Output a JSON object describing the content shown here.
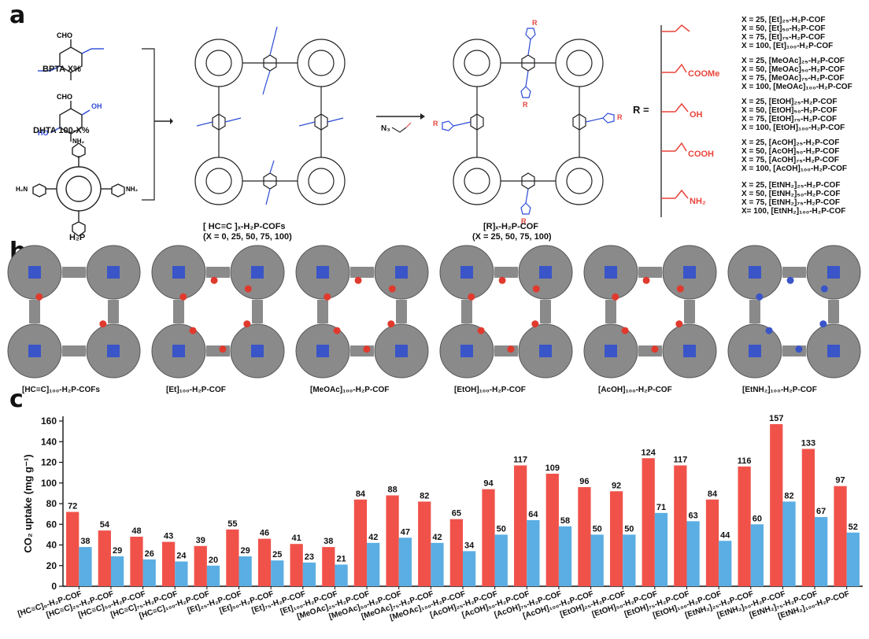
{
  "panels": {
    "a": "a",
    "b": "b",
    "c": "c"
  },
  "panel_a": {
    "bpta_label": "BPTA X%",
    "dhta_label": "DHTA 100-X%",
    "h2p_label": "H₂P",
    "cho": "CHO",
    "ho": "HO",
    "oh": "OH",
    "nh2": "NH₂",
    "h2n": "H₂N",
    "cof1_title": "[ HC≡C ]ₓ-H₂P-COFs",
    "cof1_sub": "(X = 0, 25, 50, 75, 100)",
    "cof2_title": "[R]ₓ-H₂P-COF",
    "cof2_sub": "(X = 25, 50, 75, 100)",
    "azide_reagent": "N₃",
    "r_label": "R =",
    "r_group_labels": [
      "",
      "COOMe",
      "OH",
      "COOH",
      "NH₂"
    ],
    "series_lists": [
      [
        "X = 25,   [Et]₂₅-H₂P-COF",
        "X = 50,   [Et]₅₀-H₂P-COF",
        "X = 75,   [Et]₇₅-H₂P-COF",
        "X = 100,  [Et]₁₀₀-H₂P-COF"
      ],
      [
        "X = 25,   [MeOAc]₂₅-H₂P-COF",
        "X = 50,   [MeOAc]₅₀-H₂P-COF",
        "X = 75,   [MeOAc]₇₅-H₂P-COF",
        "X = 100,  [MeOAc]₁₀₀-H₂P-COF"
      ],
      [
        "X = 25,   [EtOH]₂₅-H₂P-COF",
        "X = 50,   [EtOH]₅₀-H₂P-COF",
        "X = 75,   [EtOH]₇₅-H₂P-COF",
        "X = 100,  [EtOH]₁₀₀-H₂P-COF"
      ],
      [
        "X = 25,   [AcOH]₂₅-H₂P-COF",
        "X = 50,   [AcOH]₅₀-H₂P-COF",
        "X = 75,   [AcOH]₇₅-H₂P-COF",
        "X = 100,  [AcOH]₁₀₀-H₂P-COF"
      ],
      [
        "X = 25,   [EtNH₂]₂₅-H₂P-COF",
        "X = 50,   [EtNH₂]₅₀-H₂P-COF",
        "X = 75,   [EtNH₂]₇₅-H₂P-COF",
        "X= 100,  [EtNH₂]₁₀₀-H₂P-COF"
      ]
    ]
  },
  "panel_b": {
    "structure_labels": [
      "[HC≡C]₁₀₀-H₂P-COFs",
      "[Et]₁₀₀-H₂P-COF",
      "[MeOAc]₁₀₀-H₂P-COF",
      "[EtOH]₁₀₀-H₂P-COF",
      "[AcOH]₁₀₀-H₂P-COF",
      "[EtNH₂]₁₀₀-H₂P-COF"
    ],
    "colors": {
      "carbon": "#8a8a8a",
      "nitrogen": "#3a55c8",
      "oxygen": "#e03a2e"
    }
  },
  "chart_data": {
    "type": "bar",
    "ylabel": "CO₂ uptake (mg g⁻¹)",
    "xlabel": "",
    "ylim": [
      0,
      160
    ],
    "yticks": [
      0,
      20,
      40,
      60,
      80,
      100,
      120,
      140,
      160
    ],
    "grid": false,
    "categories": [
      "[HC≡C]₀-H₂P-COF",
      "[HC≡C]₂₅-H₂P-COF",
      "[HC≡C]₅₀-H₂P-COF",
      "[HC≡C]₇₅-H₂P-COF",
      "[HC≡C]₁₀₀-H₂P-COF",
      "[Et]₂₅-H₂P-COF",
      "[Et]₅₀-H₂P-COF",
      "[Et]₇₅-H₂P-COF",
      "[Et]₁₀₀-H₂P-COF",
      "[MeOAc]₂₅-H₂P-COF",
      "[MeOAc]₅₀-H₂P-COF",
      "[MeOAc]₇₅-H₂P-COF",
      "[MeOAc]₁₀₀-H₂P-COF",
      "[AcOH]₂₅-H₂P-COF",
      "[AcOH]₅₀-H₂P-COF",
      "[AcOH]₇₅-H₂P-COF",
      "[AcOH]₁₀₀-H₂P-COF",
      "[EtOH]₂₅-H₂P-COF",
      "[EtOH]₅₀-H₂P-COF",
      "[EtOH]₇₅-H₂P-COF",
      "[EtOH]₁₀₀-H₂P-COF",
      "[EtNH₂]₂₅-H₂P-COF",
      "[EtNH₂]₅₀-H₂P-COF",
      "[EtNH₂]₇₅-H₂P-COF",
      "[EtNH₂]₁₀₀-H₂P-COF"
    ],
    "series": [
      {
        "color": "#f0524a",
        "values": [
          72,
          54,
          48,
          43,
          39,
          55,
          46,
          41,
          38,
          84,
          88,
          82,
          65,
          94,
          117,
          109,
          96,
          92,
          124,
          117,
          84,
          116,
          157,
          133,
          97
        ]
      },
      {
        "color": "#5aaee3",
        "values": [
          38,
          29,
          26,
          24,
          20,
          29,
          25,
          23,
          21,
          42,
          47,
          42,
          34,
          50,
          64,
          58,
          50,
          50,
          71,
          63,
          44,
          60,
          82,
          67,
          52
        ]
      }
    ]
  }
}
